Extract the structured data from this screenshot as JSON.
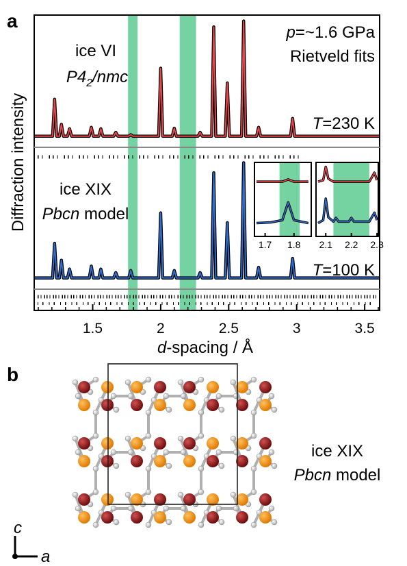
{
  "panel_labels": [
    "a",
    "b"
  ],
  "chart_data": [
    {
      "type": "line",
      "ylabel": "Diffraction intensity",
      "xlabel": [
        "d",
        "-spacing / Å"
      ],
      "annotations": [
        [
          "ice VI"
        ],
        [
          "P4",
          "2",
          "/nmc"
        ],
        [
          "p",
          "=~1.6 GPa"
        ],
        [
          "Rietveld fits"
        ],
        [
          "T",
          "=230 K"
        ],
        [
          "ice XIX"
        ],
        [
          "Pbcn",
          " model"
        ],
        [
          "T",
          "=100 K"
        ]
      ],
      "xlim": [
        1.07,
        3.61
      ],
      "ylim": [
        0,
        100
      ],
      "xticks": [
        1.5,
        2,
        2.5,
        3,
        3.5
      ],
      "xminorticks": [
        1.1,
        1.2,
        1.3,
        1.4,
        1.6,
        1.7,
        1.8,
        1.9,
        2.1,
        2.2,
        2.3,
        2.4,
        2.6,
        2.7,
        2.8,
        2.9,
        3.1,
        3.2,
        3.3,
        3.4,
        3.6
      ],
      "bands": [
        [
          1.76,
          1.83
        ],
        [
          2.14,
          2.26
        ]
      ],
      "band_color": "#74d3a0",
      "x": [
        1.07,
        1.205,
        1.22,
        1.235,
        1.255,
        1.27,
        1.285,
        1.315,
        1.33,
        1.345,
        1.475,
        1.49,
        1.505,
        1.545,
        1.56,
        1.575,
        1.655,
        1.67,
        1.685,
        1.765,
        1.78,
        1.795,
        1.985,
        2.0,
        2.015,
        2.085,
        2.1,
        2.115,
        2.275,
        2.29,
        2.305,
        2.375,
        2.39,
        2.405,
        2.475,
        2.49,
        2.505,
        2.595,
        2.61,
        2.625,
        2.705,
        2.72,
        2.735,
        2.955,
        2.97,
        2.985,
        3.61
      ],
      "series": [
        {
          "color": "#e8474a",
          "values": [
            59,
            59,
            71.5,
            59,
            59,
            63,
            59,
            59,
            61.5,
            59,
            59,
            62,
            59,
            59,
            61.5,
            59,
            59,
            60.3,
            59,
            59,
            59.5,
            59,
            59,
            82,
            59,
            59,
            61.7,
            59,
            59,
            60.3,
            59,
            59,
            96,
            59,
            59,
            77,
            59,
            59,
            98,
            59,
            59,
            62,
            59,
            59,
            65,
            59,
            59
          ]
        },
        {
          "color": "#2f6fd0",
          "values": [
            11,
            11,
            22.7,
            11,
            11,
            17,
            11,
            11,
            14,
            11,
            11,
            15,
            11,
            11,
            14,
            11,
            11,
            12.8,
            11,
            11,
            13.5,
            11,
            11,
            33,
            11,
            11,
            13.5,
            11,
            11,
            12.8,
            11,
            11,
            46.6,
            11,
            11,
            29.7,
            11,
            11,
            50,
            11,
            11,
            14.6,
            11,
            11,
            17.6,
            11,
            11
          ]
        }
      ]
    },
    {
      "type": "line",
      "xlim": [
        1.663,
        1.86
      ],
      "ylim": [
        0,
        100
      ],
      "xticks": [
        1.7,
        1.8
      ],
      "bands": [
        [
          1.75,
          1.82
        ]
      ],
      "band_color": "#74d3a0",
      "x": [
        1.67,
        1.72,
        1.76,
        1.78,
        1.8,
        1.85
      ],
      "series": [
        {
          "color": "#e8474a",
          "values": [
            74,
            74,
            74,
            77,
            74,
            74
          ]
        },
        {
          "color": "#2f6fd0",
          "values": [
            18,
            19,
            22,
            46,
            22,
            18
          ]
        }
      ]
    },
    {
      "type": "line",
      "xlim": [
        2.062,
        2.305
      ],
      "ylim": [
        0,
        100
      ],
      "xticks": [
        2.1,
        2.2,
        2.3
      ],
      "bands": [
        [
          2.13,
          2.27
        ]
      ],
      "band_color": "#74d3a0",
      "x": [
        2.07,
        2.09,
        2.1,
        2.11,
        2.13,
        2.14,
        2.15,
        2.19,
        2.2,
        2.21,
        2.27,
        2.29,
        2.3
      ],
      "series": [
        {
          "color": "#e8474a",
          "values": [
            74,
            76,
            94,
            78,
            74,
            74,
            74,
            74,
            74,
            74,
            74,
            86,
            76
          ]
        },
        {
          "color": "#2f6fd0",
          "values": [
            18,
            22,
            51,
            26,
            20,
            25,
            20,
            20,
            25,
            20,
            20,
            32,
            22
          ]
        }
      ]
    }
  ],
  "structure": {
    "annotations": [
      [
        "ice XIX"
      ],
      [
        "Pbcn",
        " model"
      ]
    ],
    "axes": [
      "c",
      "a"
    ]
  }
}
